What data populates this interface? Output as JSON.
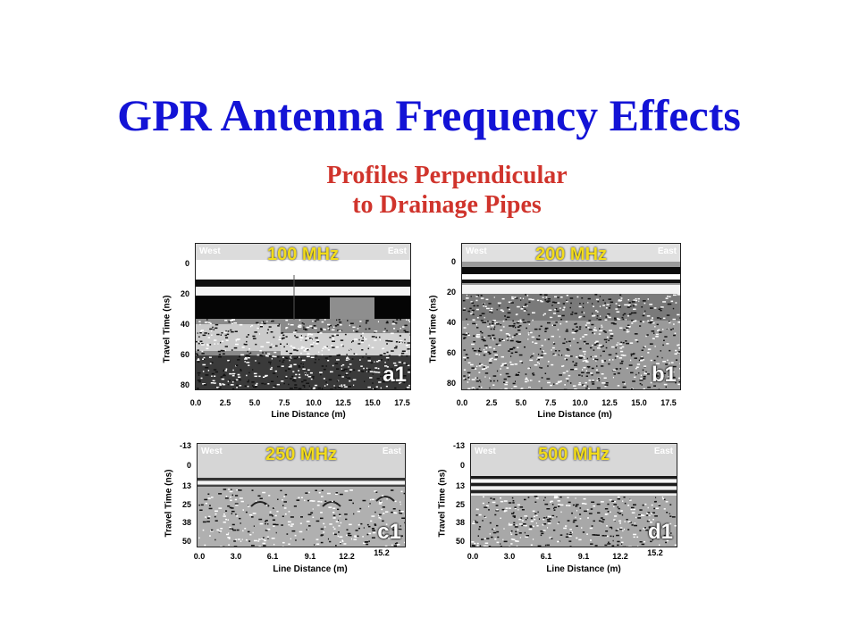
{
  "title": "GPR Antenna Frequency Effects",
  "subtitle_line1": "Profiles Perpendicular",
  "subtitle_line2": "to Drainage Pipes",
  "panels": [
    {
      "freq": "100 MHz",
      "tag": "a1",
      "west": "West",
      "east": "East",
      "yticks": [
        "0",
        "20",
        "40",
        "60",
        "80"
      ],
      "xticks": [
        "0.0",
        "2.5",
        "5.0",
        "7.5",
        "10.0",
        "12.5",
        "15.0",
        "17.5"
      ],
      "ylabel": "Travel Time (ns)",
      "xlabel": "Line Distance (m)"
    },
    {
      "freq": "200 MHz",
      "tag": "b1",
      "west": "West",
      "east": "East",
      "yticks": [
        "0",
        "20",
        "40",
        "60",
        "80"
      ],
      "xticks": [
        "0.0",
        "2.5",
        "5.0",
        "7.5",
        "10.0",
        "12.5",
        "15.0",
        "17.5"
      ],
      "ylabel": "Travel Time (ns)",
      "xlabel": "Line Distance (m)"
    },
    {
      "freq": "250 MHz",
      "tag": "c1",
      "west": "West",
      "east": "East",
      "yticks": [
        "-13",
        "0",
        "13",
        "25",
        "38",
        "50"
      ],
      "xticks": [
        "0.0",
        "3.0",
        "6.1",
        "9.1",
        "12.2",
        "15.2"
      ],
      "ylabel": "Travel Time (ns)",
      "xlabel": "Line Distance (m)"
    },
    {
      "freq": "500 MHz",
      "tag": "d1",
      "west": "West",
      "east": "East",
      "yticks": [
        "-13",
        "0",
        "13",
        "25",
        "38",
        "50"
      ],
      "xticks": [
        "0.0",
        "3.0",
        "6.1",
        "9.1",
        "12.2",
        "15.2"
      ],
      "ylabel": "Travel Time (ns)",
      "xlabel": "Line Distance (m)"
    }
  ]
}
